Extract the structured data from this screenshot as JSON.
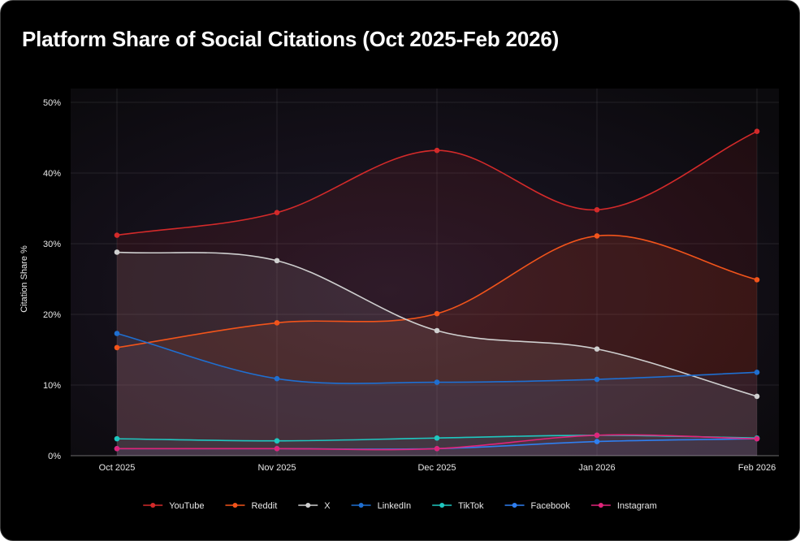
{
  "chart_data": {
    "type": "line",
    "title": "Platform Share of Social Citations (Oct 2025-Feb 2026)",
    "xlabel": "",
    "ylabel": "Citation Share %",
    "ylim": [
      0,
      50
    ],
    "yticks": [
      0,
      10,
      20,
      30,
      40,
      50
    ],
    "ytick_labels": [
      "0%",
      "10%",
      "20%",
      "30%",
      "40%",
      "50%"
    ],
    "categories": [
      "Oct 2025",
      "Nov 2025",
      "Dec 2025",
      "Jan 2026",
      "Feb 2026"
    ],
    "grid": true,
    "legend_position": "bottom",
    "series": [
      {
        "name": "YouTube",
        "color": "#d42a2a",
        "values": [
          31.2,
          34.4,
          43.2,
          34.8,
          45.9
        ]
      },
      {
        "name": "Reddit",
        "color": "#f2541b",
        "values": [
          15.3,
          18.8,
          20.1,
          31.1,
          24.9
        ]
      },
      {
        "name": "X",
        "color": "#cfcfcf",
        "values": [
          28.8,
          27.6,
          17.7,
          15.1,
          8.4
        ]
      },
      {
        "name": "LinkedIn",
        "color": "#1f6fd1",
        "values": [
          17.3,
          10.9,
          10.4,
          10.8,
          11.8
        ]
      },
      {
        "name": "TikTok",
        "color": "#1fc7c0",
        "values": [
          2.4,
          2.1,
          2.5,
          2.9,
          2.5
        ]
      },
      {
        "name": "Facebook",
        "color": "#2f7ff0",
        "values": [
          1.0,
          1.0,
          1.0,
          2.0,
          2.4
        ]
      },
      {
        "name": "Instagram",
        "color": "#e0247a",
        "values": [
          1.0,
          1.0,
          1.0,
          2.9,
          2.4
        ]
      }
    ]
  }
}
